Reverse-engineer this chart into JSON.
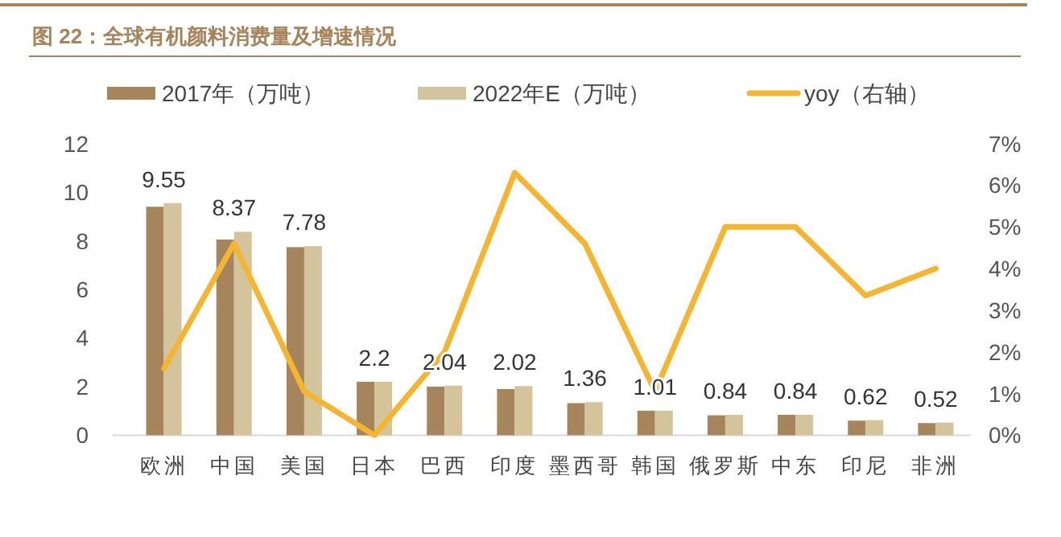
{
  "chart_data": {
    "type": "bar",
    "title": "图 22：全球有机颜料消费量及增速情况",
    "categories": [
      "欧洲",
      "中国",
      "美国",
      "日本",
      "巴西",
      "印度",
      "墨西哥",
      "韩国",
      "俄罗斯",
      "中东",
      "印尼",
      "非洲"
    ],
    "series": [
      {
        "name": "2017年（万吨）",
        "color": "#a6845c",
        "values": [
          9.4,
          8.05,
          7.74,
          2.2,
          2.0,
          1.9,
          1.32,
          1.01,
          0.82,
          0.84,
          0.6,
          0.5
        ]
      },
      {
        "name": "2022年E（万吨）",
        "color": "#d4c49c",
        "values": [
          9.55,
          8.37,
          7.78,
          2.2,
          2.04,
          2.02,
          1.36,
          1.01,
          0.84,
          0.84,
          0.62,
          0.52
        ],
        "value_labels": [
          "9.55",
          "8.37",
          "7.78",
          "2.2",
          "2.04",
          "2.02",
          "1.36",
          "1.01",
          "0.84",
          "0.84",
          "0.62",
          "0.52"
        ]
      },
      {
        "name": "yoy（右轴）",
        "type": "line",
        "axis": "y2",
        "color": "#f4b532",
        "values": [
          1.6,
          4.6,
          1.05,
          0,
          2.0,
          6.3,
          4.6,
          1.05,
          5.0,
          5.0,
          3.35,
          4.0
        ]
      }
    ],
    "ylim": [
      0,
      12
    ],
    "yticks": [
      0,
      2,
      4,
      6,
      8,
      10,
      12
    ],
    "y2lim": [
      0,
      7
    ],
    "y2ticks": [
      {
        "value": 0,
        "label": "0%"
      },
      {
        "value": 1,
        "label": "1%"
      },
      {
        "value": 2,
        "label": "2%"
      },
      {
        "value": 3,
        "label": "3%"
      },
      {
        "value": 4,
        "label": "4%"
      },
      {
        "value": 5,
        "label": "5%"
      },
      {
        "value": 6,
        "label": "6%"
      },
      {
        "value": 7,
        "label": "7%"
      }
    ],
    "legend": "top",
    "grid": false,
    "line_style": "solid",
    "marker": "none"
  }
}
